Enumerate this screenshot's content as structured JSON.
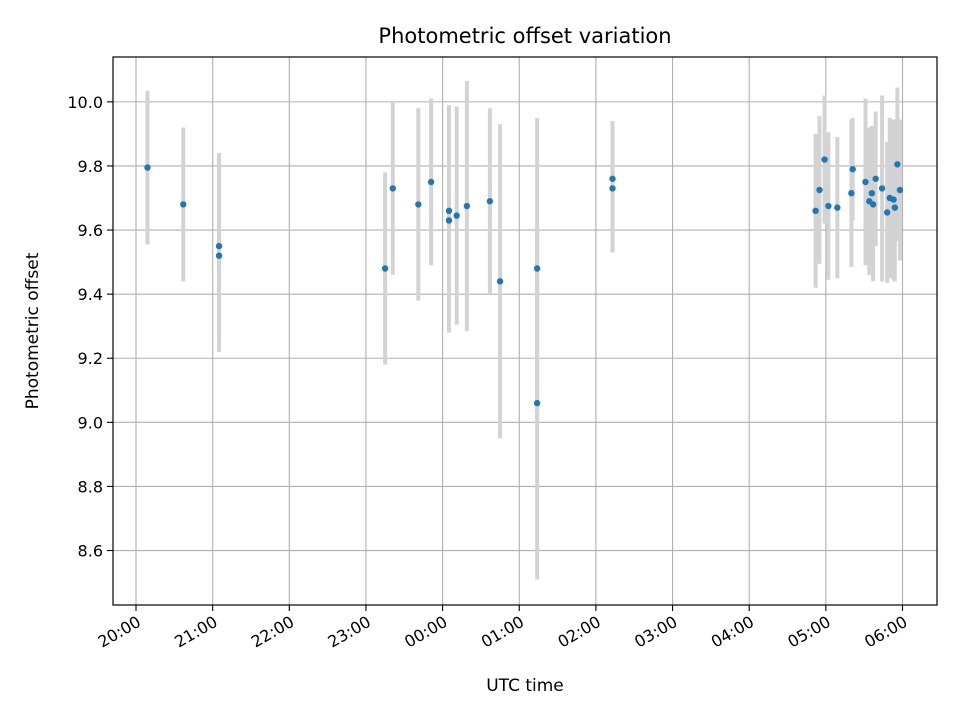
{
  "chart_data": {
    "type": "scatter",
    "title": "Photometric offset variation",
    "xlabel": "UTC time",
    "ylabel": "Photometric offset",
    "x_tick_labels": [
      "20:00",
      "21:00",
      "22:00",
      "23:00",
      "00:00",
      "01:00",
      "02:00",
      "03:00",
      "04:00",
      "05:00",
      "06:00"
    ],
    "x_tick_hours": [
      0,
      1,
      2,
      3,
      4,
      5,
      6,
      7,
      8,
      9,
      10
    ],
    "xlim_hours_from_first_tick": [
      -0.3,
      10.45
    ],
    "y_ticks": [
      8.6,
      8.8,
      9.0,
      9.2,
      9.4,
      9.6,
      9.8,
      10.0
    ],
    "ylim": [
      8.43,
      10.14
    ],
    "grid": true,
    "point_color": "#1f77b4",
    "errorbar_color": "#d3d3d3",
    "series": [
      {
        "points": [
          {
            "t": "20:09",
            "y": 9.795,
            "err": 0.24
          },
          {
            "t": "20:37",
            "y": 9.68,
            "err": 0.24
          },
          {
            "t": "21:05",
            "y": 9.55,
            "err": 0.29
          },
          {
            "t": "21:05",
            "y": 9.52,
            "err": 0.3
          },
          {
            "t": "23:15",
            "y": 9.48,
            "err": 0.3
          },
          {
            "t": "23:21",
            "y": 9.73,
            "err": 0.27
          },
          {
            "t": "23:41",
            "y": 9.68,
            "err": 0.3
          },
          {
            "t": "23:51",
            "y": 9.75,
            "err": 0.26
          },
          {
            "t": "00:05",
            "y": 9.66,
            "err": 0.33
          },
          {
            "t": "00:05",
            "y": 9.63,
            "err": 0.35
          },
          {
            "t": "00:11",
            "y": 9.645,
            "err": 0.34
          },
          {
            "t": "00:19",
            "y": 9.675,
            "err": 0.39
          },
          {
            "t": "00:37",
            "y": 9.69,
            "err": 0.29
          },
          {
            "t": "00:45",
            "y": 9.44,
            "err": 0.49
          },
          {
            "t": "01:14",
            "y": 9.48,
            "err": 0.47
          },
          {
            "t": "01:14",
            "y": 9.06,
            "err": 0.55
          },
          {
            "t": "02:13",
            "y": 9.76,
            "err": 0.18
          },
          {
            "t": "02:13",
            "y": 9.73,
            "err": 0.2
          },
          {
            "t": "04:52",
            "y": 9.66,
            "err": 0.24
          },
          {
            "t": "04:55",
            "y": 9.725,
            "err": 0.23
          },
          {
            "t": "04:59",
            "y": 9.82,
            "err": 0.2
          },
          {
            "t": "05:02",
            "y": 9.675,
            "err": 0.23
          },
          {
            "t": "05:09",
            "y": 9.67,
            "err": 0.22
          },
          {
            "t": "05:20",
            "y": 9.715,
            "err": 0.23
          },
          {
            "t": "05:21",
            "y": 9.79,
            "err": 0.16
          },
          {
            "t": "05:31",
            "y": 9.75,
            "err": 0.26
          },
          {
            "t": "05:34",
            "y": 9.69,
            "err": 0.23
          },
          {
            "t": "05:36",
            "y": 9.715,
            "err": 0.21
          },
          {
            "t": "05:37",
            "y": 9.68,
            "err": 0.24
          },
          {
            "t": "05:39",
            "y": 9.76,
            "err": 0.21
          },
          {
            "t": "05:44",
            "y": 9.73,
            "err": 0.29
          },
          {
            "t": "05:48",
            "y": 9.655,
            "err": 0.22
          },
          {
            "t": "05:50",
            "y": 9.7,
            "err": 0.25
          },
          {
            "t": "05:53",
            "y": 9.695,
            "err": 0.25
          },
          {
            "t": "05:54",
            "y": 9.67,
            "err": 0.23
          },
          {
            "t": "05:56",
            "y": 9.805,
            "err": 0.24
          },
          {
            "t": "05:58",
            "y": 9.725,
            "err": 0.22
          }
        ]
      }
    ]
  }
}
